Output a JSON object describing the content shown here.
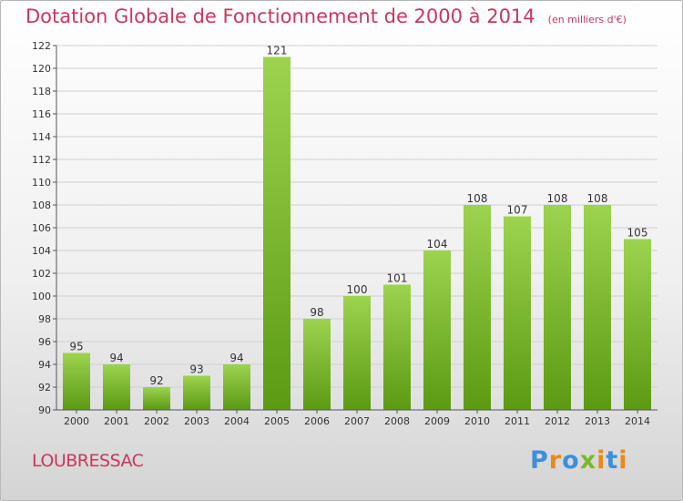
{
  "title": "Dotation Globale de Fonctionnement de 2000 à 2014",
  "subtitle": "(en milliers d'€)",
  "commune": "LOUBRESSAC",
  "logo": {
    "letters": [
      "P",
      "r",
      "o",
      "x",
      "i",
      "t",
      "i"
    ],
    "colors": [
      "#3d8fd9",
      "#e8891a",
      "#3d8fd9",
      "#7ab82e",
      "#e8891a",
      "#3d8fd9",
      "#e8891a"
    ]
  },
  "colors": {
    "bar_top": "#9dd34f",
    "bar_bottom": "#5b9a12",
    "grid": "#cfcfcf",
    "text": "#333333",
    "accent": "#c8385e"
  },
  "chart_data": {
    "type": "bar",
    "categories": [
      "2000",
      "2001",
      "2002",
      "2003",
      "2004",
      "2005",
      "2006",
      "2007",
      "2008",
      "2009",
      "2010",
      "2011",
      "2012",
      "2013",
      "2014"
    ],
    "values": [
      95,
      94,
      92,
      93,
      94,
      121,
      98,
      100,
      101,
      104,
      108,
      107,
      108,
      108,
      105
    ],
    "ylim": [
      90,
      122
    ],
    "yticks": [
      90,
      92,
      94,
      96,
      98,
      100,
      102,
      104,
      106,
      108,
      110,
      112,
      114,
      116,
      118,
      120,
      122
    ],
    "grid": true,
    "xlabel": "",
    "ylabel": ""
  }
}
